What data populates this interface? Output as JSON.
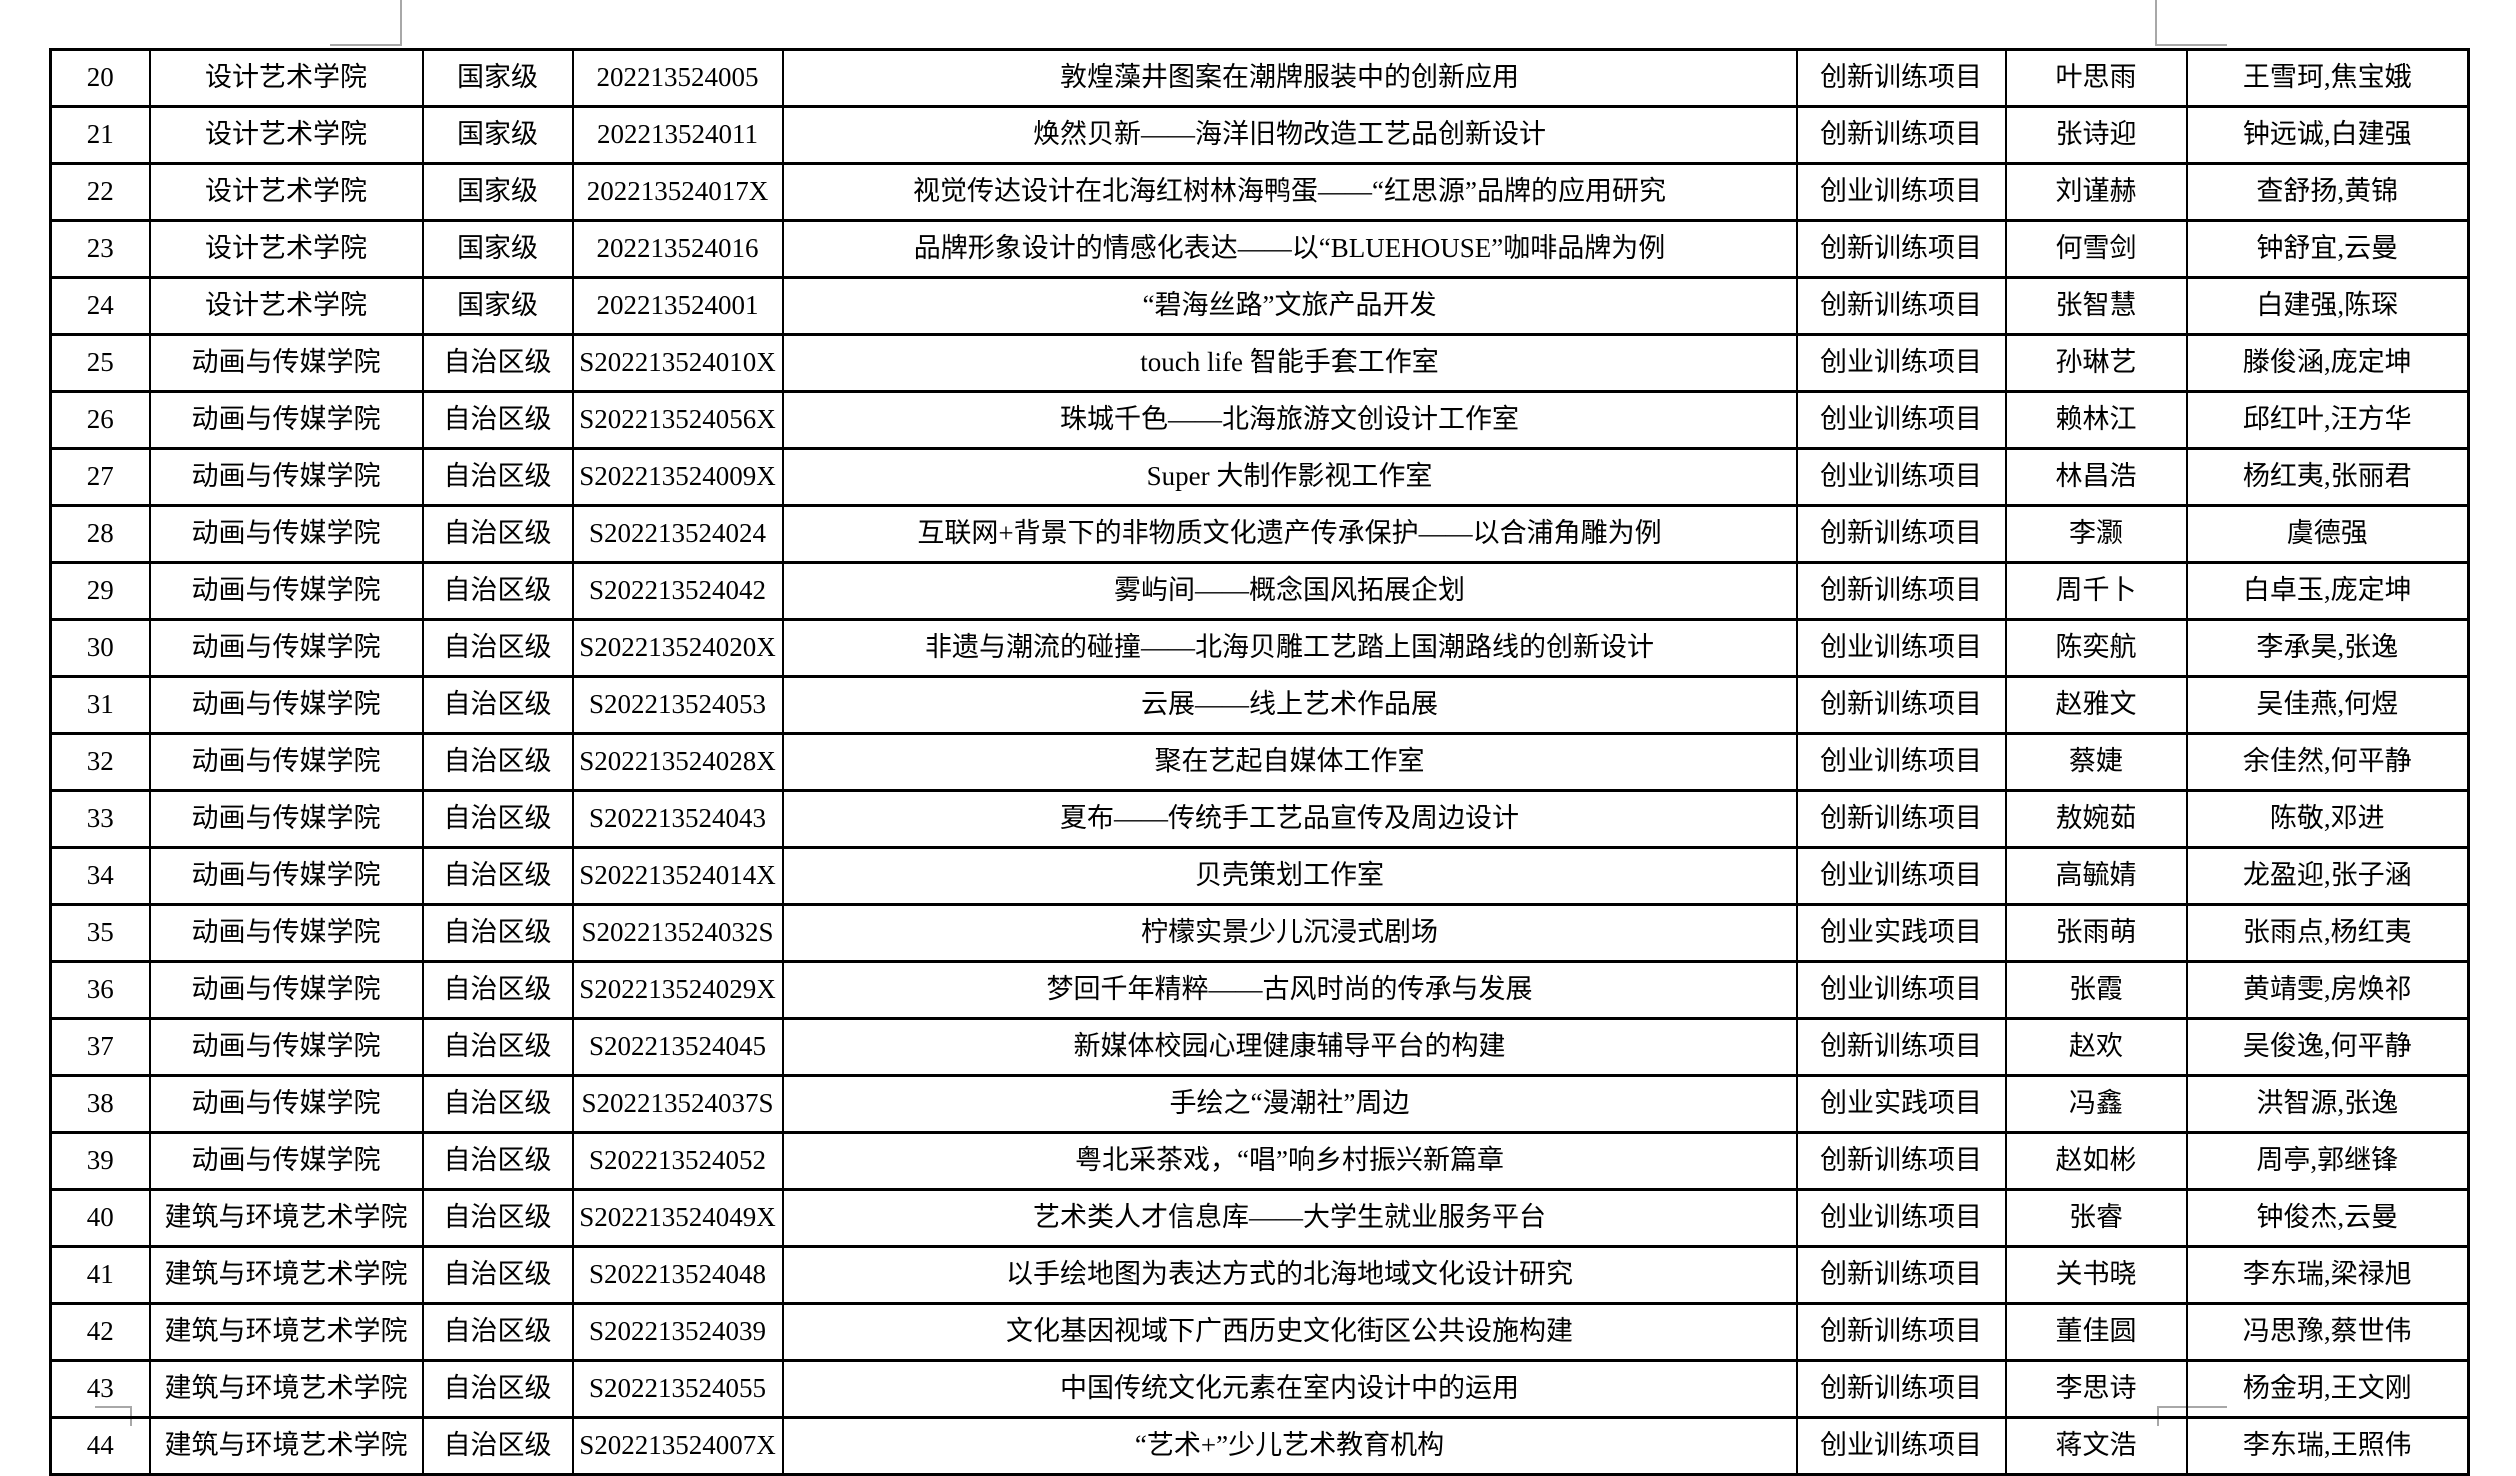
{
  "page": {
    "background": "#ffffff",
    "table_border_color": "#000000",
    "margin_mark_color": "#a8a8a8"
  },
  "table": {
    "rows": [
      {
        "no": "20",
        "college": "设计艺术学院",
        "level": "国家级",
        "code": "202213524005",
        "title": "敦煌藻井图案在潮牌服装中的创新应用",
        "type": "创新训练项目",
        "leader": "叶思雨",
        "members": "王雪珂,焦宝娥"
      },
      {
        "no": "21",
        "college": "设计艺术学院",
        "level": "国家级",
        "code": "202213524011",
        "title": "焕然贝新——海洋旧物改造工艺品创新设计",
        "type": "创新训练项目",
        "leader": "张诗迎",
        "members": "钟远诚,白建强"
      },
      {
        "no": "22",
        "college": "设计艺术学院",
        "level": "国家级",
        "code": "202213524017X",
        "title": "视觉传达设计在北海红树林海鸭蛋——“红思源”品牌的应用研究",
        "type": "创业训练项目",
        "leader": "刘谨赫",
        "members": "查舒扬,黄锦"
      },
      {
        "no": "23",
        "college": "设计艺术学院",
        "level": "国家级",
        "code": "202213524016",
        "title": "品牌形象设计的情感化表达——以“BLUEHOUSE”咖啡品牌为例",
        "type": "创新训练项目",
        "leader": "何雪剑",
        "members": "钟舒宜,云曼"
      },
      {
        "no": "24",
        "college": "设计艺术学院",
        "level": "国家级",
        "code": "202213524001",
        "title": "“碧海丝路”文旅产品开发",
        "type": "创新训练项目",
        "leader": "张智慧",
        "members": "白建强,陈琛"
      },
      {
        "no": "25",
        "college": "动画与传媒学院",
        "level": "自治区级",
        "code": "S202213524010X",
        "title": "touch life 智能手套工作室",
        "type": "创业训练项目",
        "leader": "孙琳艺",
        "members": "滕俊涵,庞定坤"
      },
      {
        "no": "26",
        "college": "动画与传媒学院",
        "level": "自治区级",
        "code": "S202213524056X",
        "title": "珠城千色——北海旅游文创设计工作室",
        "type": "创业训练项目",
        "leader": "赖林江",
        "members": "邱红叶,汪方华"
      },
      {
        "no": "27",
        "college": "动画与传媒学院",
        "level": "自治区级",
        "code": "S202213524009X",
        "title": "Super 大制作影视工作室",
        "type": "创业训练项目",
        "leader": "林昌浩",
        "members": "杨红夷,张丽君"
      },
      {
        "no": "28",
        "college": "动画与传媒学院",
        "level": "自治区级",
        "code": "S202213524024",
        "title": "互联网+背景下的非物质文化遗产传承保护——以合浦角雕为例",
        "type": "创新训练项目",
        "leader": "李灏",
        "members": "虞德强"
      },
      {
        "no": "29",
        "college": "动画与传媒学院",
        "level": "自治区级",
        "code": "S202213524042",
        "title": "雾屿间——概念国风拓展企划",
        "type": "创新训练项目",
        "leader": "周千卜",
        "members": "白卓玉,庞定坤"
      },
      {
        "no": "30",
        "college": "动画与传媒学院",
        "level": "自治区级",
        "code": "S202213524020X",
        "title": "非遗与潮流的碰撞——北海贝雕工艺踏上国潮路线的创新设计",
        "type": "创业训练项目",
        "leader": "陈奕航",
        "members": "李承昊,张逸"
      },
      {
        "no": "31",
        "college": "动画与传媒学院",
        "level": "自治区级",
        "code": "S202213524053",
        "title": "云展——线上艺术作品展",
        "type": "创新训练项目",
        "leader": "赵雅文",
        "members": "吴佳燕,何煜"
      },
      {
        "no": "32",
        "college": "动画与传媒学院",
        "level": "自治区级",
        "code": "S202213524028X",
        "title": "聚在艺起自媒体工作室",
        "type": "创业训练项目",
        "leader": "蔡婕",
        "members": "余佳然,何平静"
      },
      {
        "no": "33",
        "college": "动画与传媒学院",
        "level": "自治区级",
        "code": "S202213524043",
        "title": "夏布——传统手工艺品宣传及周边设计",
        "type": "创新训练项目",
        "leader": "敖婉茹",
        "members": "陈敬,邓进"
      },
      {
        "no": "34",
        "college": "动画与传媒学院",
        "level": "自治区级",
        "code": "S202213524014X",
        "title": "贝壳策划工作室",
        "type": "创业训练项目",
        "leader": "高毓婧",
        "members": "龙盈迎,张子涵"
      },
      {
        "no": "35",
        "college": "动画与传媒学院",
        "level": "自治区级",
        "code": "S202213524032S",
        "title": "柠檬实景少儿沉浸式剧场",
        "type": "创业实践项目",
        "leader": "张雨萌",
        "members": "张雨点,杨红夷"
      },
      {
        "no": "36",
        "college": "动画与传媒学院",
        "level": "自治区级",
        "code": "S202213524029X",
        "title": "梦回千年精粹——古风时尚的传承与发展",
        "type": "创业训练项目",
        "leader": "张霞",
        "members": "黄靖雯,房焕祁"
      },
      {
        "no": "37",
        "college": "动画与传媒学院",
        "level": "自治区级",
        "code": "S202213524045",
        "title": "新媒体校园心理健康辅导平台的构建",
        "type": "创新训练项目",
        "leader": "赵欢",
        "members": "吴俊逸,何平静"
      },
      {
        "no": "38",
        "college": "动画与传媒学院",
        "level": "自治区级",
        "code": "S202213524037S",
        "title": "手绘之“漫潮社”周边",
        "type": "创业实践项目",
        "leader": "冯鑫",
        "members": "洪智源,张逸"
      },
      {
        "no": "39",
        "college": "动画与传媒学院",
        "level": "自治区级",
        "code": "S202213524052",
        "title": "粤北采茶戏，“唱”响乡村振兴新篇章",
        "type": "创新训练项目",
        "leader": "赵如彬",
        "members": "周亭,郭继锋"
      },
      {
        "no": "40",
        "college": "建筑与环境艺术学院",
        "level": "自治区级",
        "code": "S202213524049X",
        "title": "艺术类人才信息库——大学生就业服务平台",
        "type": "创业训练项目",
        "leader": "张睿",
        "members": "钟俊杰,云曼"
      },
      {
        "no": "41",
        "college": "建筑与环境艺术学院",
        "level": "自治区级",
        "code": "S202213524048",
        "title": "以手绘地图为表达方式的北海地域文化设计研究",
        "type": "创新训练项目",
        "leader": "关书晓",
        "members": "李东瑞,梁禄旭"
      },
      {
        "no": "42",
        "college": "建筑与环境艺术学院",
        "level": "自治区级",
        "code": "S202213524039",
        "title": "文化基因视域下广西历史文化街区公共设施构建",
        "type": "创新训练项目",
        "leader": "董佳圆",
        "members": "冯思豫,蔡世伟"
      },
      {
        "no": "43",
        "college": "建筑与环境艺术学院",
        "level": "自治区级",
        "code": "S202213524055",
        "title": "中国传统文化元素在室内设计中的运用",
        "type": "创新训练项目",
        "leader": "李思诗",
        "members": "杨金玥,王文刚"
      },
      {
        "no": "44",
        "college": "建筑与环境艺术学院",
        "level": "自治区级",
        "code": "S202213524007X",
        "title": "“艺术+”少儿艺术教育机构",
        "type": "创业训练项目",
        "leader": "蒋文浩",
        "members": "李东瑞,王照伟"
      }
    ]
  }
}
